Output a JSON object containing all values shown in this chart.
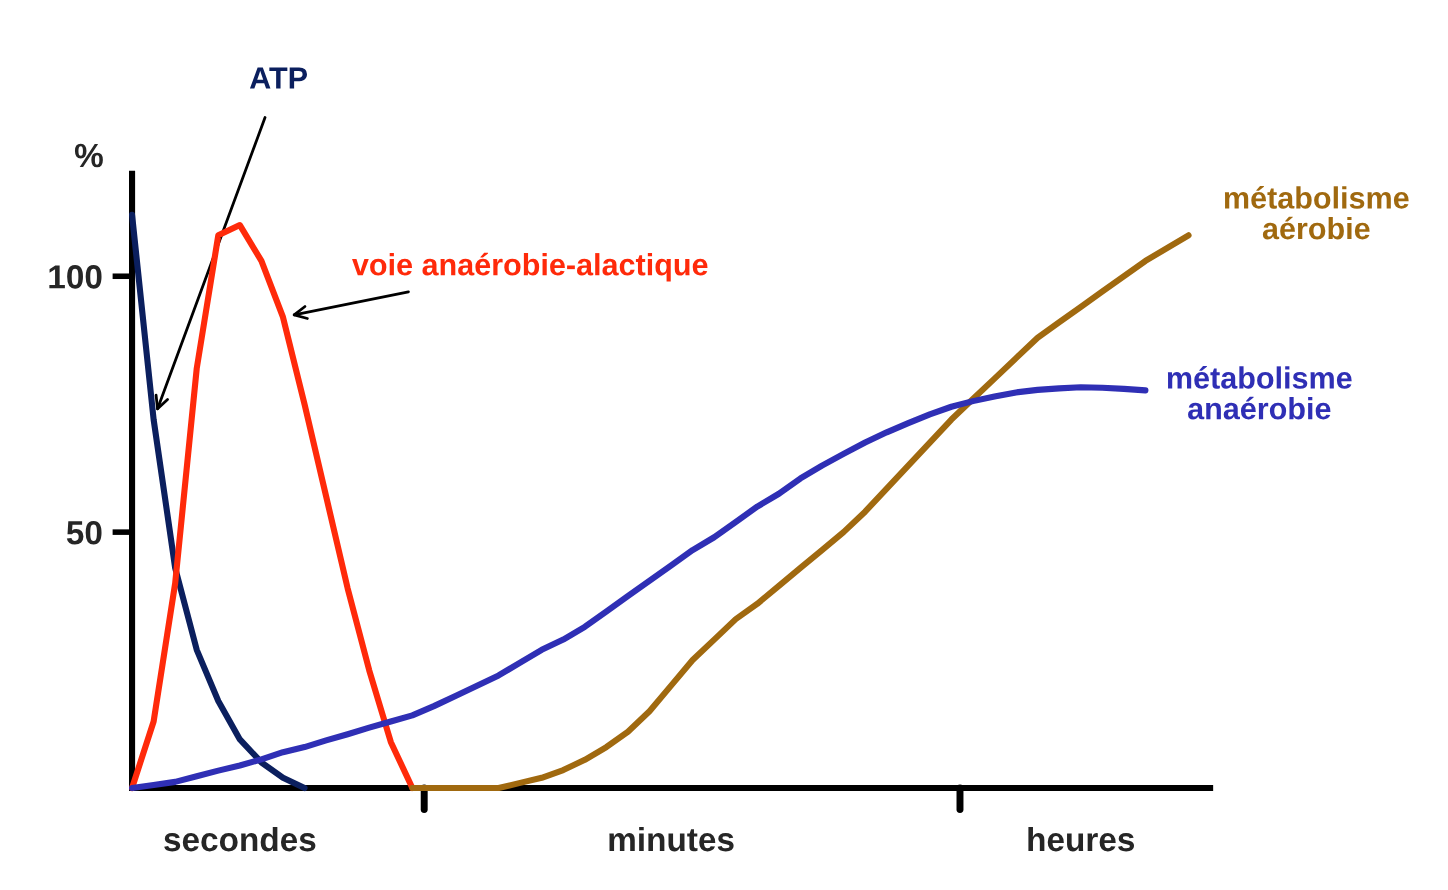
{
  "chart_data": {
    "type": "line",
    "ylabel": "%",
    "ylim": [
      0,
      120
    ],
    "yticks": [
      50,
      100
    ],
    "categories": [
      null,
      null,
      null,
      null,
      null,
      "secondes",
      null,
      null,
      null,
      null,
      null,
      null,
      null,
      null,
      null,
      null,
      null,
      null,
      null,
      null,
      null,
      null,
      null,
      null,
      null,
      "minutes",
      null,
      null,
      null,
      null,
      null,
      null,
      null,
      null,
      null,
      null,
      null,
      null,
      null,
      null,
      null,
      null,
      null,
      null,
      "heures",
      null,
      null,
      null,
      null,
      null,
      null
    ],
    "grid": false,
    "legend": false,
    "marker": "none",
    "line_style": "solid",
    "series": [
      {
        "name": "ATP",
        "color": "#0b1f5e",
        "values": [
          112,
          72,
          43,
          27,
          17,
          9.5,
          5,
          2,
          0,
          null,
          null,
          null,
          null,
          null,
          null,
          null,
          null,
          null,
          null,
          null,
          null,
          null,
          null,
          null,
          null,
          null,
          null,
          null,
          null,
          null,
          null,
          null,
          null,
          null,
          null,
          null,
          null,
          null,
          null,
          null,
          null,
          null,
          null,
          null,
          null,
          null,
          null,
          null,
          null,
          null,
          null
        ]
      },
      {
        "name": "voie anaérobie-alactique",
        "color": "#ff2a0a",
        "values": [
          0,
          13,
          40,
          82,
          108,
          110,
          103,
          92,
          75,
          57,
          39,
          23,
          9,
          0,
          null,
          null,
          null,
          null,
          null,
          null,
          null,
          null,
          null,
          null,
          null,
          null,
          null,
          null,
          null,
          null,
          null,
          null,
          null,
          null,
          null,
          null,
          null,
          null,
          null,
          null,
          null,
          null,
          null,
          null,
          null,
          null,
          null,
          null,
          null,
          null,
          null
        ]
      },
      {
        "name": "métabolisme\naérobie",
        "color": "#a0690f",
        "values": [
          null,
          null,
          null,
          null,
          null,
          null,
          null,
          null,
          null,
          null,
          null,
          null,
          null,
          0,
          0,
          0,
          0,
          0,
          1,
          2,
          3.5,
          5.5,
          8,
          11,
          15,
          20,
          25,
          29,
          33,
          36,
          39.5,
          43,
          46.5,
          50,
          54,
          58.5,
          63,
          67.5,
          72,
          76,
          80,
          84,
          88,
          91,
          94,
          97,
          100,
          103,
          105.5,
          108,
          null
        ]
      },
      {
        "name": "métabolisme\nanaérobie",
        "color": "#2f2fb5",
        "values": [
          0,
          0.6,
          1.2,
          2.3,
          3.4,
          4.4,
          5.6,
          7,
          8,
          9.3,
          10.5,
          11.8,
          13,
          14.2,
          16,
          18,
          20,
          22,
          24.5,
          27,
          29,
          31.5,
          34.5,
          37.5,
          40.5,
          43.5,
          46.5,
          49,
          52,
          55,
          57.5,
          60.5,
          63,
          65.3,
          67.5,
          69.5,
          71.3,
          73,
          74.5,
          75.6,
          76.5,
          77.3,
          77.8,
          78.1,
          78.3,
          78.2,
          78,
          77.7,
          null,
          null,
          null
        ]
      }
    ]
  }
}
